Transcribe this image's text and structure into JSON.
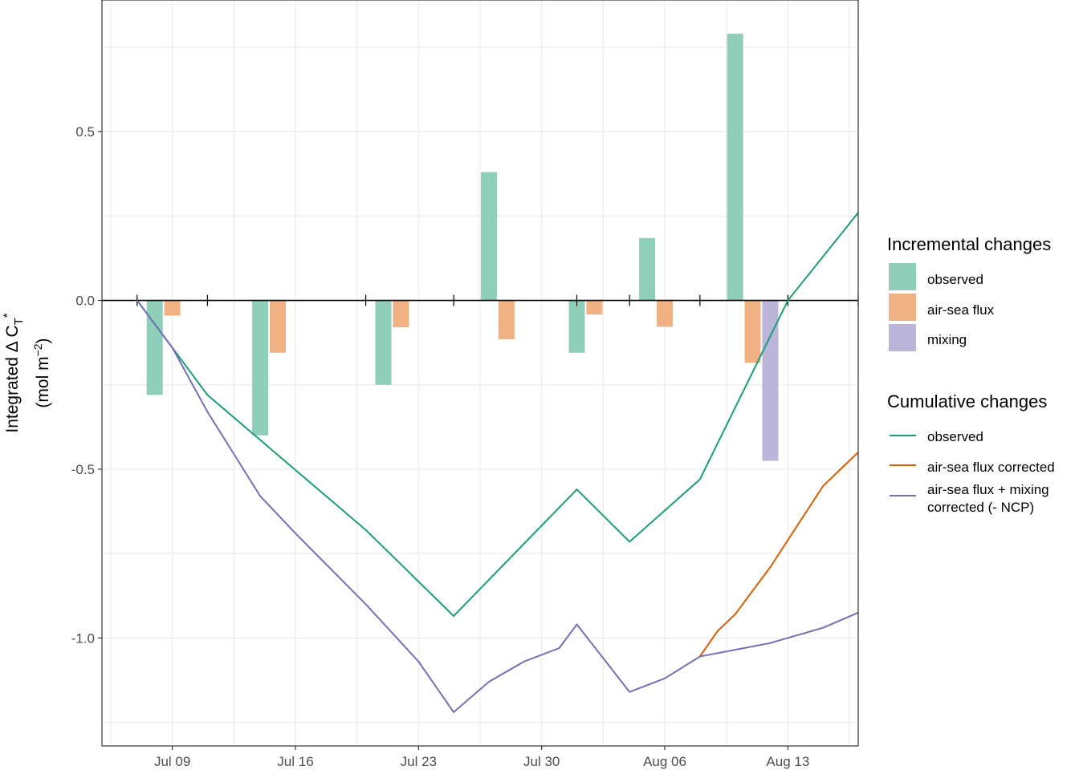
{
  "chart_data": {
    "type": "bar",
    "x_axis": {
      "type": "date",
      "ticks": [
        "2023-07-09",
        "2023-07-16",
        "2023-07-23",
        "2023-07-30",
        "2023-08-06",
        "2023-08-13"
      ],
      "tick_labels": [
        "Jul 09",
        "Jul 16",
        "Jul 23",
        "Jul 30",
        "Aug 06",
        "Aug 13"
      ],
      "range": [
        "2023-07-05",
        "2023-08-17"
      ]
    },
    "y_axis": {
      "label_line1": "Integrated Δ C",
      "label_sub": "T",
      "label_sup": "*",
      "label_line2_pre": "(mol m",
      "label_line2_sup": "−2",
      "label_line2_post": ")",
      "ticks": [
        0.5,
        0.0,
        -0.5,
        -1.0
      ],
      "tick_labels": [
        "0.5",
        "0.0",
        "-0.5",
        "-1.0"
      ],
      "range": [
        -1.32,
        0.89
      ]
    },
    "grid": true,
    "zero_line": true,
    "sample_dates": [
      "2023-07-07",
      "2023-07-11",
      "2023-07-20",
      "2023-07-25",
      "2023-08-01",
      "2023-08-04",
      "2023-08-08",
      "2023-08-13",
      "2023-08-17"
    ],
    "incremental_changes": {
      "title": "Incremental changes",
      "series": [
        {
          "name": "observed",
          "color": "#8fcfba",
          "bars": [
            {
              "x": "2023-07-08",
              "value": -0.28
            },
            {
              "x": "2023-07-14",
              "value": -0.4
            },
            {
              "x": "2023-07-21",
              "value": -0.25
            },
            {
              "x": "2023-07-27",
              "value": 0.38
            },
            {
              "x": "2023-08-01",
              "value": -0.155
            },
            {
              "x": "2023-08-05",
              "value": 0.185
            },
            {
              "x": "2023-08-10",
              "value": 0.79
            }
          ]
        },
        {
          "name": "air-sea flux",
          "color": "#f0b283",
          "bars": [
            {
              "x": "2023-07-09",
              "value": -0.045
            },
            {
              "x": "2023-07-15",
              "value": -0.155
            },
            {
              "x": "2023-07-22",
              "value": -0.08
            },
            {
              "x": "2023-07-28",
              "value": -0.115
            },
            {
              "x": "2023-08-02",
              "value": -0.042
            },
            {
              "x": "2023-08-06",
              "value": -0.078
            },
            {
              "x": "2023-08-11",
              "value": -0.185
            }
          ]
        },
        {
          "name": "mixing",
          "color": "#bbb5da",
          "bars": [
            {
              "x": "2023-08-12",
              "value": -0.475
            }
          ]
        }
      ]
    },
    "cumulative_changes": {
      "title": "Cumulative changes",
      "series": [
        {
          "name": "observed",
          "color": "#1b9e77",
          "points": [
            [
              "2023-07-07",
              0.0
            ],
            [
              "2023-07-11",
              -0.28
            ],
            [
              "2023-07-20",
              -0.68
            ],
            [
              "2023-07-25",
              -0.935
            ],
            [
              "2023-08-01",
              -0.56
            ],
            [
              "2023-08-04",
              -0.715
            ],
            [
              "2023-08-08",
              -0.53
            ],
            [
              "2023-08-13",
              0.0
            ],
            [
              "2023-08-17",
              0.26
            ]
          ]
        },
        {
          "name": "air-sea flux corrected",
          "color": "#d95f02",
          "points": [
            [
              "2023-08-08",
              -1.055
            ],
            [
              "2023-08-09",
              -0.98
            ],
            [
              "2023-08-10",
              -0.93
            ],
            [
              "2023-08-11",
              -0.86
            ],
            [
              "2023-08-12",
              -0.79
            ],
            [
              "2023-08-13",
              -0.71
            ],
            [
              "2023-08-14",
              -0.63
            ],
            [
              "2023-08-15",
              -0.55
            ],
            [
              "2023-08-16",
              -0.5
            ],
            [
              "2023-08-17",
              -0.45
            ]
          ]
        },
        {
          "name": "air-sea flux + mixing",
          "name_line2": "corrected (- NCP)",
          "color": "#7570b3",
          "points": [
            [
              "2023-07-07",
              0.0
            ],
            [
              "2023-07-09",
              -0.14
            ],
            [
              "2023-07-11",
              -0.33
            ],
            [
              "2023-07-14",
              -0.58
            ],
            [
              "2023-07-16",
              -0.69
            ],
            [
              "2023-07-20",
              -0.9
            ],
            [
              "2023-07-23",
              -1.07
            ],
            [
              "2023-07-25",
              -1.22
            ],
            [
              "2023-07-27",
              -1.13
            ],
            [
              "2023-07-29",
              -1.07
            ],
            [
              "2023-07-31",
              -1.03
            ],
            [
              "2023-08-01",
              -0.96
            ],
            [
              "2023-08-04",
              -1.16
            ],
            [
              "2023-08-06",
              -1.12
            ],
            [
              "2023-08-08",
              -1.055
            ],
            [
              "2023-08-10",
              -1.035
            ],
            [
              "2023-08-12",
              -1.015
            ],
            [
              "2023-08-13",
              -1.0
            ],
            [
              "2023-08-15",
              -0.97
            ],
            [
              "2023-08-17",
              -0.925
            ]
          ]
        }
      ]
    }
  }
}
